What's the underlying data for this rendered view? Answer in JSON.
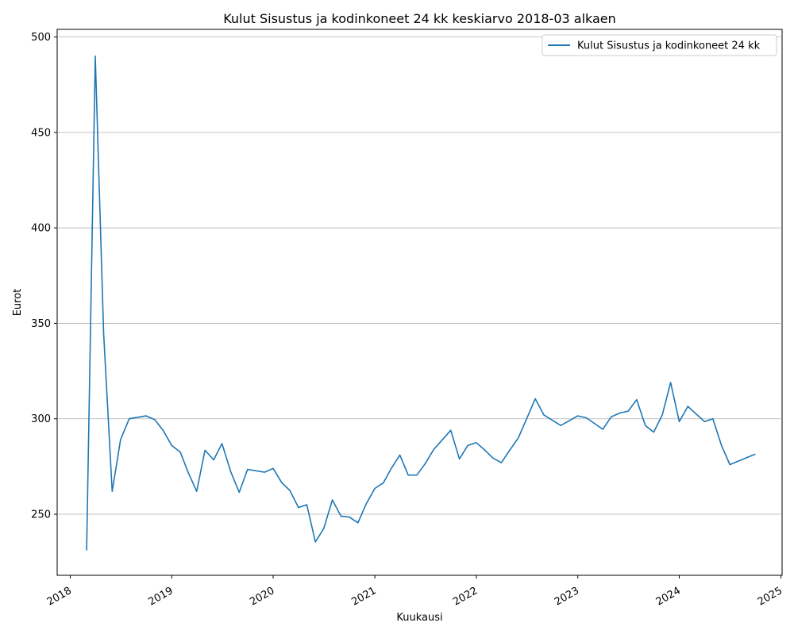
{
  "chart_data": {
    "type": "line",
    "title": "Kulut Sisustus ja kodinkoneet 24 kk keskiarvo 2018-03 alkaen",
    "xlabel": "Kuukausi",
    "ylabel": "Eurot",
    "x_ticks": [
      "2018",
      "2019",
      "2020",
      "2021",
      "2022",
      "2023",
      "2024",
      "2025"
    ],
    "y_ticks": [
      250,
      300,
      350,
      400,
      450,
      500
    ],
    "ylim": [
      218,
      504
    ],
    "xlim": [
      "2017-11-15",
      "2025-01-05"
    ],
    "grid": "horizontal",
    "legend_position": "top-right",
    "series": [
      {
        "name": "Kulut Sisustus ja kodinkoneet 24 kk",
        "color": "#1f77b4",
        "points": [
          [
            "2018-03",
            231
          ],
          [
            "2018-04",
            490
          ],
          [
            "2018-05",
            345
          ],
          [
            "2018-06",
            262
          ],
          [
            "2018-07",
            289
          ],
          [
            "2018-08",
            300
          ],
          [
            "2018-10",
            301.5
          ],
          [
            "2018-11",
            299.5
          ],
          [
            "2018-12",
            294
          ],
          [
            "2019-01",
            286
          ],
          [
            "2019-02",
            282.5
          ],
          [
            "2019-03",
            272
          ],
          [
            "2019-04",
            262
          ],
          [
            "2019-05",
            283.5
          ],
          [
            "2019-06",
            278.5
          ],
          [
            "2019-07",
            287
          ],
          [
            "2019-08",
            272.5
          ],
          [
            "2019-09",
            261.5
          ],
          [
            "2019-10",
            273.5
          ],
          [
            "2019-12",
            272
          ],
          [
            "2020-01",
            274
          ],
          [
            "2020-02",
            266.5
          ],
          [
            "2020-03",
            262.5
          ],
          [
            "2020-04",
            253.5
          ],
          [
            "2020-05",
            255
          ],
          [
            "2020-06",
            235.5
          ],
          [
            "2020-07",
            242.5
          ],
          [
            "2020-08",
            257.5
          ],
          [
            "2020-09",
            249
          ],
          [
            "2020-10",
            248.5
          ],
          [
            "2020-11",
            245.5
          ],
          [
            "2020-12",
            255.5
          ],
          [
            "2021-01",
            263.5
          ],
          [
            "2021-02",
            266.5
          ],
          [
            "2021-03",
            274
          ],
          [
            "2021-04",
            281
          ],
          [
            "2021-05",
            270.5
          ],
          [
            "2021-06",
            270.5
          ],
          [
            "2021-07",
            276.5
          ],
          [
            "2021-08",
            284
          ],
          [
            "2021-09",
            289
          ],
          [
            "2021-10",
            294
          ],
          [
            "2021-11",
            279
          ],
          [
            "2021-12",
            286
          ],
          [
            "2022-01",
            287.5
          ],
          [
            "2022-02",
            283.5
          ],
          [
            "2022-03",
            279.5
          ],
          [
            "2022-04",
            277
          ],
          [
            "2022-05",
            283.5
          ],
          [
            "2022-06",
            290
          ],
          [
            "2022-07",
            300
          ],
          [
            "2022-08",
            310.5
          ],
          [
            "2022-09",
            302
          ],
          [
            "2022-11",
            296.5
          ],
          [
            "2023-01",
            301.5
          ],
          [
            "2023-02",
            300.5
          ],
          [
            "2023-04",
            294.5
          ],
          [
            "2023-05",
            301
          ],
          [
            "2023-06",
            303
          ],
          [
            "2023-07",
            304
          ],
          [
            "2023-08",
            310
          ],
          [
            "2023-09",
            296.5
          ],
          [
            "2023-10",
            293
          ],
          [
            "2023-11",
            302
          ],
          [
            "2023-12",
            319
          ],
          [
            "2024-01",
            298.5
          ],
          [
            "2024-02",
            306.5
          ],
          [
            "2024-04",
            298.5
          ],
          [
            "2024-05",
            300
          ],
          [
            "2024-06",
            286
          ],
          [
            "2024-07",
            276
          ],
          [
            "2024-10",
            281.5
          ]
        ]
      }
    ]
  }
}
